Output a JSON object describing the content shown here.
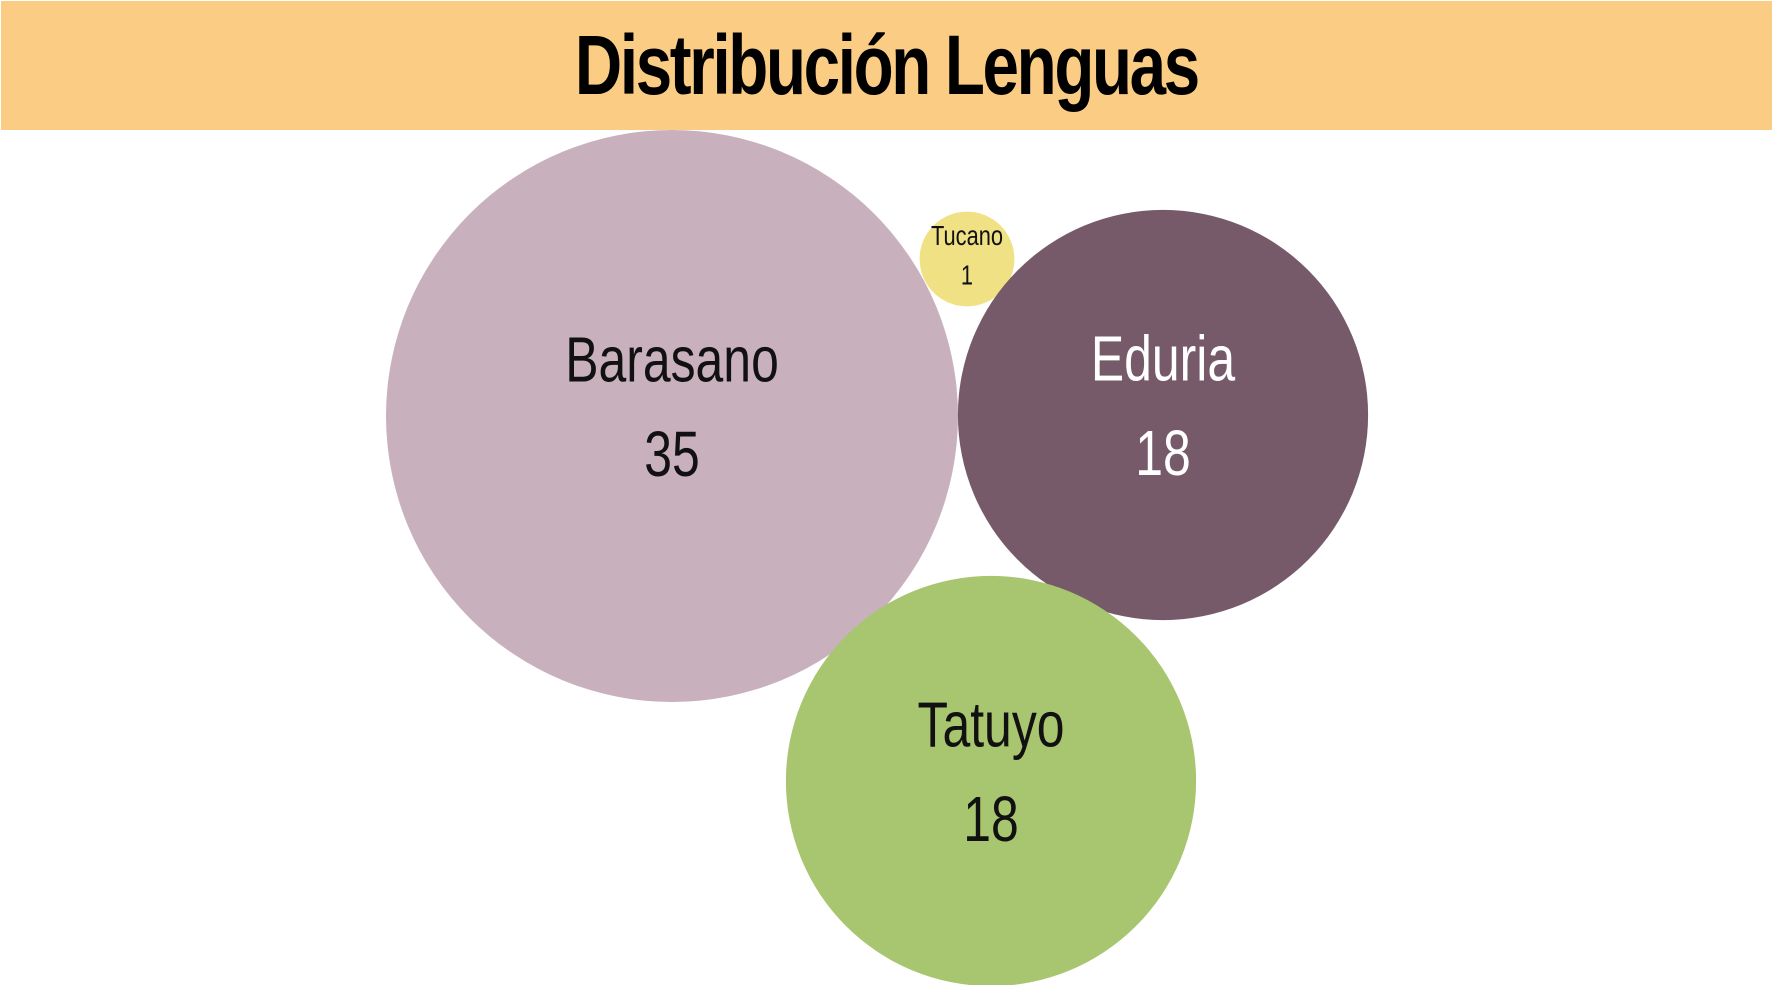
{
  "title": "Distribución Lenguas",
  "colors": {
    "banner": "#fbcc84"
  },
  "chart_data": {
    "type": "bubble",
    "title": "Distribución Lenguas",
    "legend": "none",
    "grid": false,
    "bubbles": [
      {
        "label": "Barasano",
        "value": 35,
        "color": "#c8b0bd",
        "text_color": "#111111"
      },
      {
        "label": "Tucano",
        "value": 1,
        "color": "#f0e184",
        "text_color": "#111111"
      },
      {
        "label": "Eduria",
        "value": 18,
        "color": "#775a6a",
        "text_color": "#ffffff"
      },
      {
        "label": "Tatuyo",
        "value": 18,
        "color": "#a8c56f",
        "text_color": "#111111"
      }
    ]
  }
}
